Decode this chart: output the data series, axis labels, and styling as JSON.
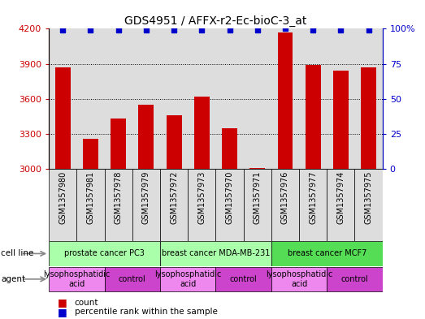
{
  "title": "GDS4951 / AFFX-r2-Ec-bioC-3_at",
  "samples": [
    "GSM1357980",
    "GSM1357981",
    "GSM1357978",
    "GSM1357979",
    "GSM1357972",
    "GSM1357973",
    "GSM1357970",
    "GSM1357971",
    "GSM1357976",
    "GSM1357977",
    "GSM1357974",
    "GSM1357975"
  ],
  "counts": [
    3870,
    3260,
    3430,
    3550,
    3460,
    3620,
    3350,
    3010,
    4170,
    3890,
    3840,
    3870
  ],
  "percentiles": [
    99,
    99,
    99,
    99,
    99,
    99,
    99,
    99,
    100,
    99,
    99,
    99
  ],
  "ylim_left": [
    3000,
    4200
  ],
  "ylim_right": [
    0,
    100
  ],
  "yticks_left": [
    3000,
    3300,
    3600,
    3900,
    4200
  ],
  "yticks_right": [
    0,
    25,
    50,
    75,
    100
  ],
  "bar_color": "#cc0000",
  "dot_color": "#0000cc",
  "bg_color": "#dddddd",
  "cell_lines": [
    {
      "label": "prostate cancer PC3",
      "start": 0,
      "end": 4,
      "color": "#aaffaa"
    },
    {
      "label": "breast cancer MDA-MB-231",
      "start": 4,
      "end": 8,
      "color": "#aaffaa"
    },
    {
      "label": "breast cancer MCF7",
      "start": 8,
      "end": 12,
      "color": "#55dd55"
    }
  ],
  "agents": [
    {
      "label": "lysophosphatidic\nacid",
      "start": 0,
      "end": 2,
      "color": "#ee88ee"
    },
    {
      "label": "control",
      "start": 2,
      "end": 4,
      "color": "#cc44cc"
    },
    {
      "label": "lysophosphatidic\nacid",
      "start": 4,
      "end": 6,
      "color": "#ee88ee"
    },
    {
      "label": "control",
      "start": 6,
      "end": 8,
      "color": "#cc44cc"
    },
    {
      "label": "lysophosphatidic\nacid",
      "start": 8,
      "end": 10,
      "color": "#ee88ee"
    },
    {
      "label": "control",
      "start": 10,
      "end": 12,
      "color": "#cc44cc"
    }
  ],
  "title_fontsize": 10,
  "tick_fontsize": 7,
  "sample_label_fontsize": 7,
  "row_label_fontsize": 7.5,
  "cell_fontsize": 7,
  "agent_fontsize": 7,
  "legend_fontsize": 7.5
}
